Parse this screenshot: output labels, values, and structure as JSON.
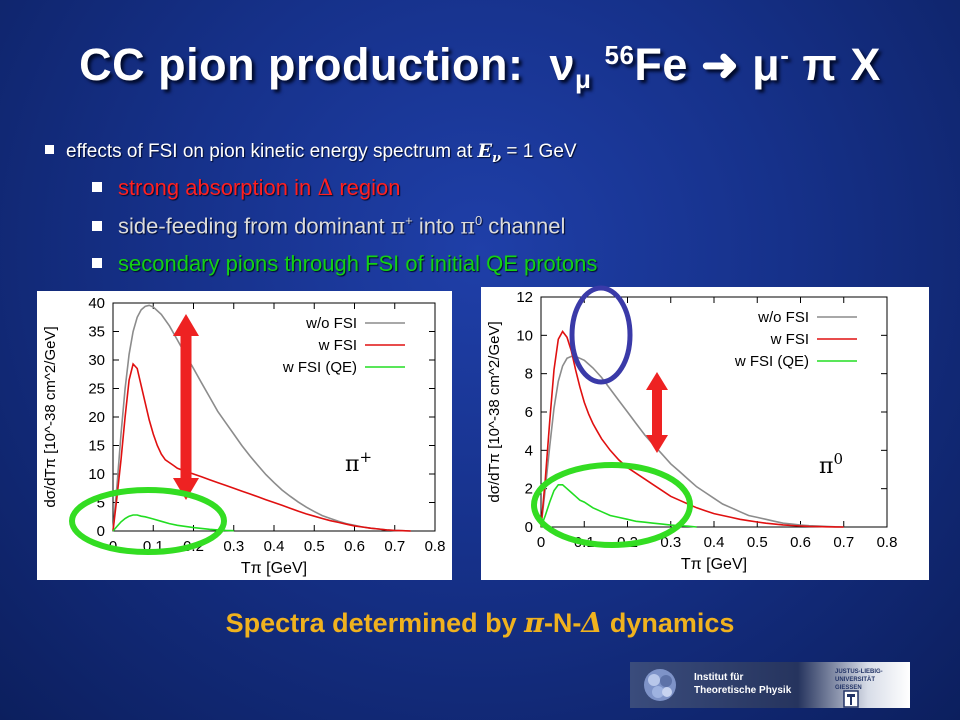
{
  "title": {
    "main": "CC pion production:",
    "nu": "ν",
    "nu_sub": "μ",
    "mass": "56",
    "fe": "Fe",
    "arrow": "",
    "mu": "μ",
    "mu_sup": "-",
    "rest": "π X"
  },
  "bullets": {
    "level1": {
      "prefix": "effects of FSI on pion kinetic energy spectrum at ",
      "var": "E",
      "var_sub": "ν",
      "suffix": " = 1 GeV"
    },
    "red": {
      "prefix": "strong absorption in ",
      "symbol": "Δ",
      "suffix": " region"
    },
    "gray": {
      "prefix": "side-feeding from dominant ",
      "pi1": "π",
      "pi1_sup": "+",
      "middle": " into ",
      "pi2": "π",
      "pi2_sup": "0",
      "suffix": " channel"
    },
    "green": {
      "text": "secondary pions through FSI of initial QE protons"
    }
  },
  "caption": {
    "prefix": "Spectra determined by ",
    "pi": "π",
    "middle": "-N-",
    "delta": "Δ",
    "suffix": " dynamics"
  },
  "logo": {
    "line1": "Institut für",
    "line2": "Theoretische Physik",
    "uni1": "JUSTUS-LIEBIG-",
    "uni2": "UNIVERSITÄT",
    "uni3": "GIESSEN"
  },
  "colors": {
    "wo_fsi": "#8c8c8c",
    "w_fsi": "#e01010",
    "w_fsi_qe": "#22dd22",
    "arrow": "#ee2222",
    "ellipse_green": "#33dd22",
    "ellipse_blue": "#3a3aa8",
    "caption": "#f0b21e"
  },
  "chart_data": [
    {
      "type": "line",
      "particle_label": "π+",
      "xlabel": "Tπ [GeV]",
      "ylabel": "dσ/dTπ [10^-38 cm^2/GeV]",
      "xlim": [
        0,
        0.8
      ],
      "ylim": [
        0,
        40
      ],
      "xticks": [
        "0",
        "0.1",
        "0.2",
        "0.3",
        "0.4",
        "0.5",
        "0.6",
        "0.7",
        "0.8"
      ],
      "yticks": [
        "0",
        "5",
        "10",
        "15",
        "20",
        "25",
        "30",
        "35",
        "40"
      ],
      "legend_position": "top-right",
      "series": [
        {
          "name": "w/o FSI",
          "x": [
            0,
            0.01,
            0.02,
            0.03,
            0.04,
            0.05,
            0.06,
            0.07,
            0.08,
            0.09,
            0.1,
            0.12,
            0.14,
            0.16,
            0.18,
            0.2,
            0.22,
            0.24,
            0.26,
            0.28,
            0.3,
            0.32,
            0.34,
            0.36,
            0.38,
            0.4,
            0.42,
            0.44,
            0.46,
            0.48,
            0.5,
            0.52,
            0.54,
            0.56,
            0.58,
            0.6,
            0.62,
            0.64,
            0.66,
            0.68,
            0.7,
            0.72,
            0.74
          ],
          "y": [
            0,
            8,
            17,
            25,
            31,
            35,
            37.5,
            38.8,
            39.4,
            39.6,
            39.3,
            38,
            36,
            33.5,
            31,
            28.5,
            26,
            23.5,
            21,
            19,
            17,
            15,
            13.2,
            11.5,
            9.9,
            8.5,
            7.2,
            6.1,
            5.1,
            4.2,
            3.4,
            2.7,
            2.2,
            1.7,
            1.3,
            1.0,
            0.7,
            0.5,
            0.35,
            0.2,
            0.1,
            0.05,
            0
          ]
        },
        {
          "name": "w FSI",
          "x": [
            0,
            0.01,
            0.02,
            0.03,
            0.04,
            0.05,
            0.06,
            0.07,
            0.08,
            0.09,
            0.1,
            0.11,
            0.12,
            0.13,
            0.14,
            0.15,
            0.16,
            0.18,
            0.2,
            0.22,
            0.24,
            0.26,
            0.28,
            0.3,
            0.32,
            0.34,
            0.36,
            0.38,
            0.4,
            0.42,
            0.44,
            0.46,
            0.48,
            0.5,
            0.52,
            0.54,
            0.56,
            0.58,
            0.6,
            0.62,
            0.64,
            0.66,
            0.68,
            0.7,
            0.72,
            0.74
          ],
          "y": [
            0,
            6,
            12.5,
            20,
            26.5,
            29.3,
            28.5,
            25.5,
            22.5,
            19.5,
            17,
            15,
            13.5,
            12.5,
            12,
            11.5,
            11,
            10.5,
            10,
            9.5,
            9,
            8.5,
            8,
            7.5,
            7,
            6.5,
            6,
            5.5,
            5,
            4.5,
            4,
            3.5,
            3,
            2.6,
            2.2,
            1.8,
            1.5,
            1.2,
            0.9,
            0.7,
            0.5,
            0.35,
            0.2,
            0.1,
            0.05,
            0
          ]
        },
        {
          "name": "w FSI (QE)",
          "x": [
            0,
            0.01,
            0.02,
            0.03,
            0.04,
            0.05,
            0.06,
            0.07,
            0.08,
            0.09,
            0.1,
            0.12,
            0.14,
            0.16,
            0.18,
            0.2,
            0.22,
            0.24,
            0.26,
            0.28,
            0.3
          ],
          "y": [
            0,
            0.8,
            1.6,
            2.2,
            2.6,
            2.8,
            2.8,
            2.6,
            2.5,
            2.3,
            2.1,
            1.7,
            1.3,
            1.0,
            0.8,
            0.6,
            0.45,
            0.3,
            0.2,
            0.1,
            0.05
          ]
        }
      ]
    },
    {
      "type": "line",
      "particle_label": "π0",
      "xlabel": "Tπ [GeV]",
      "ylabel": "dσ/dTπ [10^-38 cm^2/GeV]",
      "xlim": [
        0,
        0.8
      ],
      "ylim": [
        0,
        12
      ],
      "xticks": [
        "0",
        "0.1",
        "0.2",
        "0.3",
        "0.4",
        "0.5",
        "0.6",
        "0.7",
        "0.8"
      ],
      "yticks": [
        "0",
        "2",
        "4",
        "6",
        "8",
        "10",
        "12"
      ],
      "legend_position": "top-right",
      "series": [
        {
          "name": "w/o FSI",
          "x": [
            0,
            0.01,
            0.02,
            0.03,
            0.04,
            0.05,
            0.06,
            0.07,
            0.08,
            0.09,
            0.1,
            0.11,
            0.12,
            0.14,
            0.16,
            0.18,
            0.2,
            0.22,
            0.24,
            0.26,
            0.28,
            0.3,
            0.32,
            0.34,
            0.36,
            0.38,
            0.4,
            0.42,
            0.44,
            0.46,
            0.48,
            0.5,
            0.52,
            0.54,
            0.56,
            0.58,
            0.6,
            0.62,
            0.64,
            0.66,
            0.68,
            0.7
          ],
          "y": [
            0,
            2,
            4.2,
            6.2,
            7.6,
            8.4,
            8.8,
            8.9,
            8.9,
            8.8,
            8.7,
            8.5,
            8.3,
            7.8,
            7.2,
            6.6,
            6.0,
            5.4,
            4.8,
            4.3,
            3.8,
            3.3,
            2.9,
            2.5,
            2.1,
            1.8,
            1.5,
            1.2,
            1.0,
            0.8,
            0.6,
            0.5,
            0.4,
            0.3,
            0.2,
            0.15,
            0.1,
            0.07,
            0.05,
            0.03,
            0.01,
            0
          ]
        },
        {
          "name": "w FSI",
          "x": [
            0,
            0.01,
            0.02,
            0.03,
            0.04,
            0.05,
            0.06,
            0.07,
            0.08,
            0.09,
            0.1,
            0.11,
            0.12,
            0.13,
            0.14,
            0.16,
            0.18,
            0.2,
            0.22,
            0.24,
            0.26,
            0.28,
            0.3,
            0.32,
            0.34,
            0.36,
            0.38,
            0.4,
            0.42,
            0.44,
            0.46,
            0.48,
            0.5,
            0.52,
            0.54,
            0.56,
            0.58,
            0.6,
            0.62,
            0.64,
            0.66,
            0.68,
            0.7
          ],
          "y": [
            0,
            2.5,
            5.5,
            8.2,
            9.8,
            10.2,
            9.9,
            9.2,
            8.2,
            7.3,
            6.5,
            5.9,
            5.4,
            5.0,
            4.6,
            4.0,
            3.5,
            3.1,
            2.8,
            2.5,
            2.2,
            1.9,
            1.6,
            1.4,
            1.2,
            1.0,
            0.85,
            0.7,
            0.6,
            0.5,
            0.4,
            0.33,
            0.26,
            0.2,
            0.15,
            0.11,
            0.08,
            0.05,
            0.03,
            0.02,
            0.01,
            0.005,
            0
          ]
        },
        {
          "name": "w FSI (QE)",
          "x": [
            0,
            0.01,
            0.02,
            0.03,
            0.04,
            0.05,
            0.06,
            0.07,
            0.08,
            0.09,
            0.1,
            0.12,
            0.14,
            0.16,
            0.18,
            0.2,
            0.22,
            0.24,
            0.26,
            0.28,
            0.3,
            0.32,
            0.34,
            0.36
          ],
          "y": [
            0,
            0.6,
            1.3,
            1.9,
            2.2,
            2.2,
            2.0,
            1.8,
            1.6,
            1.4,
            1.3,
            1.0,
            0.8,
            0.6,
            0.5,
            0.4,
            0.3,
            0.25,
            0.2,
            0.15,
            0.1,
            0.07,
            0.04,
            0
          ]
        }
      ]
    }
  ]
}
